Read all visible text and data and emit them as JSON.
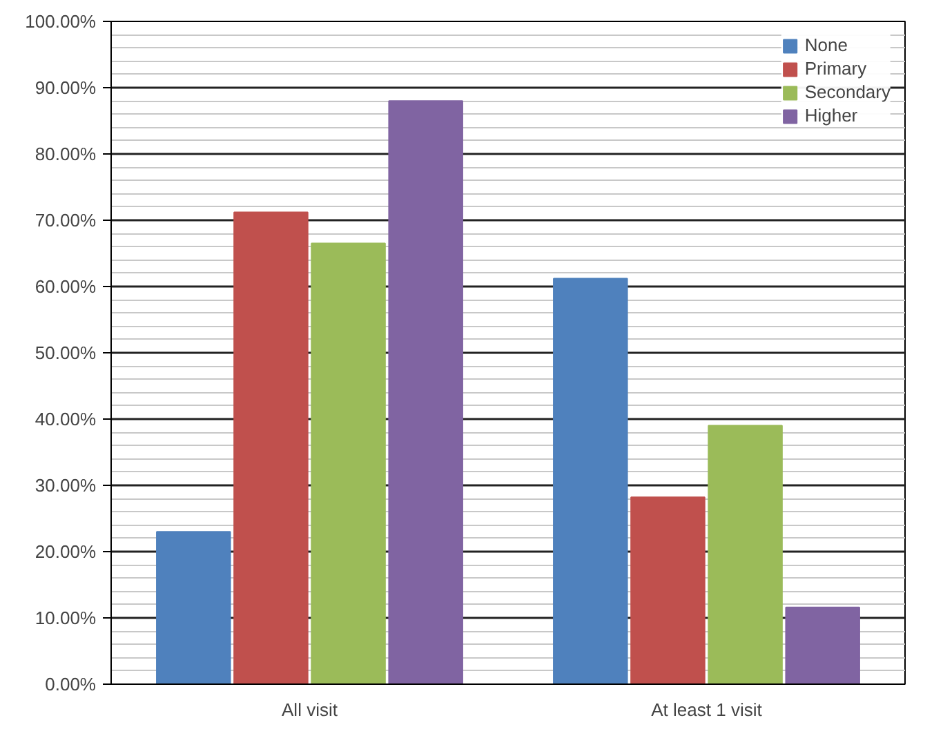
{
  "chart_data": {
    "type": "bar",
    "categories": [
      "All visit",
      "At least 1 visit"
    ],
    "series": [
      {
        "name": "None",
        "color": "#4f81bd",
        "values": [
          23,
          61.2
        ]
      },
      {
        "name": "Primary",
        "color": "#c0504d",
        "values": [
          71.2,
          28.2
        ]
      },
      {
        "name": "Secondary",
        "color": "#9bbb59",
        "values": [
          66.5,
          39
        ]
      },
      {
        "name": "Higher",
        "color": "#8064a2",
        "values": [
          88,
          11.6
        ]
      }
    ],
    "ylim": [
      0,
      100
    ],
    "yticks": [
      {
        "value": 0,
        "label": "0.00%"
      },
      {
        "value": 10,
        "label": "10.00%"
      },
      {
        "value": 20,
        "label": "20.00%"
      },
      {
        "value": 30,
        "label": "30.00%"
      },
      {
        "value": 40,
        "label": "40.00%"
      },
      {
        "value": 50,
        "label": "50.00%"
      },
      {
        "value": 60,
        "label": "60.00%"
      },
      {
        "value": 70,
        "label": "70.00%"
      },
      {
        "value": 80,
        "label": "80.00%"
      },
      {
        "value": 90,
        "label": "90.00%"
      },
      {
        "value": 100,
        "label": "100.00%"
      }
    ],
    "grid": "y",
    "legend": "top right"
  }
}
